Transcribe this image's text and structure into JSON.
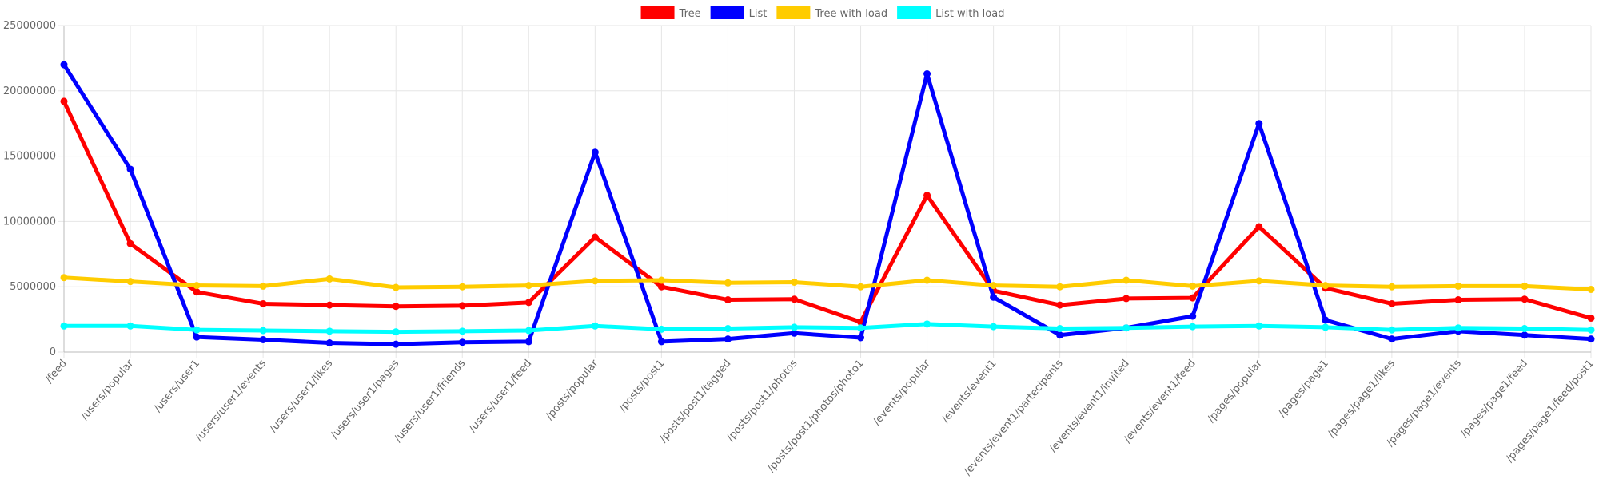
{
  "chart_data": {
    "type": "line",
    "categories": [
      "/feed",
      "/users/popular",
      "/users/user1",
      "/users/user1/events",
      "/users/user1/likes",
      "/users/user1/pages",
      "/users/user1/friends",
      "/users/user1/feed",
      "/posts/popular",
      "/posts/post1",
      "/posts/post1/tagged",
      "/posts/post1/photos",
      "/posts/post1/photos/photo1",
      "/events/popular",
      "/events/event1",
      "/events/event1/partecipants",
      "/events/event1/invited",
      "/events/event1/feed",
      "/pages/popular",
      "/pages/page1",
      "/pages/page1/likes",
      "/pages/page1/events",
      "/pages/page1/feed",
      "/pages/page1/feed/post1"
    ],
    "series": [
      {
        "name": "Tree",
        "color": "#ff0000",
        "values": [
          19200000,
          8300000,
          4600000,
          3700000,
          3600000,
          3500000,
          3550000,
          3800000,
          8800000,
          5000000,
          4000000,
          4050000,
          2300000,
          12000000,
          4700000,
          3600000,
          4100000,
          4150000,
          9600000,
          4900000,
          3700000,
          4000000,
          4050000,
          2600000
        ]
      },
      {
        "name": "List",
        "color": "#0000ff",
        "values": [
          22000000,
          14000000,
          1150000,
          950000,
          700000,
          600000,
          750000,
          800000,
          15300000,
          800000,
          1000000,
          1450000,
          1100000,
          21300000,
          4200000,
          1300000,
          1850000,
          2750000,
          17500000,
          2450000,
          1000000,
          1600000,
          1300000,
          1000000
        ]
      },
      {
        "name": "Tree with load",
        "color": "#ffcc00",
        "values": [
          5700000,
          5400000,
          5100000,
          5050000,
          5600000,
          4950000,
          5000000,
          5100000,
          5450000,
          5500000,
          5300000,
          5350000,
          5000000,
          5500000,
          5100000,
          5000000,
          5500000,
          5050000,
          5450000,
          5100000,
          5000000,
          5050000,
          5050000,
          4800000
        ]
      },
      {
        "name": "List with load",
        "color": "#00ffff",
        "values": [
          2000000,
          2000000,
          1700000,
          1650000,
          1600000,
          1550000,
          1600000,
          1650000,
          2000000,
          1750000,
          1800000,
          1900000,
          1850000,
          2150000,
          1950000,
          1800000,
          1850000,
          1950000,
          2000000,
          1900000,
          1700000,
          1850000,
          1800000,
          1700000
        ]
      }
    ],
    "ylim": [
      0,
      25000000
    ],
    "yticks": [
      0,
      5000000,
      10000000,
      15000000,
      20000000,
      25000000
    ],
    "grid": true,
    "legend": "top"
  }
}
